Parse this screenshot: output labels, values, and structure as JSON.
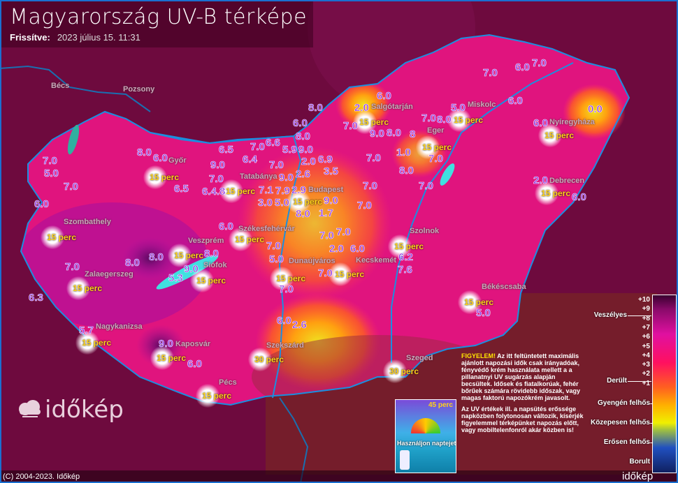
{
  "header": {
    "title": "Magyarország UV-B térképe",
    "updated_label": "Frissítve:",
    "updated_value": "2023 július 15. 11:31"
  },
  "colors": {
    "background": "#6e0a3e",
    "country_fill": "#e0147e",
    "rivers_borders": "#1a8fe0",
    "uv_text": "#8a2be2",
    "time_text": "#ffd21a"
  },
  "cities": [
    "Bécs",
    "Pozsony",
    "Salgótarján",
    "Miskolc",
    "Nyíregyháza",
    "Eger",
    "Győr",
    "Tatabánya",
    "Budapest",
    "Debrecen",
    "Szombathely",
    "Székesfehérvár",
    "Szolnok",
    "Veszprém",
    "Siófok",
    "Zalaegerszeg",
    "Dunaújváros",
    "Kecskemét",
    "Békéscsaba",
    "Nagykanizsa",
    "Kaposvár",
    "Szekszárd",
    "Szeged",
    "Pécs"
  ],
  "uv_values": [
    "7.0",
    "6.0",
    "7.0",
    "6.0",
    "2.0",
    "9.0",
    "8.0",
    "7.0",
    "8.0",
    "6.0",
    "8.0",
    "5.0",
    "8.0",
    "6.0",
    "0.0",
    "6.0",
    "8",
    "7.0",
    "7.0",
    "1.0",
    "7.0",
    "8.0",
    "6.5",
    "7.0",
    "6.4",
    "6.6",
    "5.9",
    "9.0",
    "2.0",
    "6.9",
    "3.5",
    "2.6",
    "9.0",
    "8.0",
    "6.0",
    "7.0",
    "6.4.8",
    "7.0",
    "9.0",
    "7.9",
    "2.9",
    "9.0",
    "7.1",
    "5.0",
    "8.0",
    "3.0",
    "1.7",
    "7.0",
    "7.0",
    "7.0",
    "7.0",
    "5.0",
    "7.0",
    "6.0",
    "6.5",
    "2.0",
    "6.0",
    "6.0",
    "7.0",
    "5.0",
    "7.0",
    "2.0",
    "6.0",
    "7.0",
    "7.0",
    "6.2",
    "8.0",
    "8.0",
    "9.0",
    "5.3",
    "7.0",
    "8.0",
    "6.3",
    "7.0",
    "7.6",
    "5.0",
    "6.0",
    "2.6",
    "5.7",
    "9.0",
    "6.0"
  ],
  "exposure_markers": [
    {
      "city": "Salgótarján",
      "text": "15 perc"
    },
    {
      "city": "Miskolc",
      "text": "15 perc"
    },
    {
      "city": "Nyíregyháza",
      "text": "15 perc"
    },
    {
      "city": "Eger",
      "text": "15 perc"
    },
    {
      "city": "Győr",
      "text": "15 perc"
    },
    {
      "city": "Tatabánya",
      "text": "15 perc"
    },
    {
      "city": "Budapest",
      "text": "15 perc"
    },
    {
      "city": "Debrecen",
      "text": "15 perc"
    },
    {
      "city": "Szombathely",
      "text": "15 perc"
    },
    {
      "city": "Székesfehérvár",
      "text": "15 perc"
    },
    {
      "city": "Szolnok",
      "text": "15 perc"
    },
    {
      "city": "Veszprém",
      "text": "15 perc"
    },
    {
      "city": "Siófok",
      "text": "15 perc"
    },
    {
      "city": "Zalaegerszeg",
      "text": "15 perc"
    },
    {
      "city": "Dunaújváros",
      "text": "15 perc"
    },
    {
      "city": "Kecskemét",
      "text": "15 perc"
    },
    {
      "city": "Békéscsaba",
      "text": "15 perc"
    },
    {
      "city": "Nagykanizsa",
      "text": "15 perc"
    },
    {
      "city": "Kaposvár",
      "text": "15 perc"
    },
    {
      "city": "Szekszárd",
      "text": "30 perc"
    },
    {
      "city": "Szeged",
      "text": "30 perc"
    },
    {
      "city": "Pécs",
      "text": "15 perc"
    }
  ],
  "legend": {
    "ticks": [
      "+10",
      "+9",
      "+8",
      "+7",
      "+6",
      "+5",
      "+4",
      "+3",
      "+2",
      "+1"
    ],
    "categories": [
      "Veszélyes",
      "Derült",
      "Gyengén felhős",
      "Közepesen felhős",
      "Erősen felhős",
      "Borult"
    ]
  },
  "ad": {
    "time": "45 perc",
    "slogan": "Használjon naptejet!"
  },
  "warning": {
    "lead": "FIGYELEM!",
    "p1": " Az itt feltüntetett maximális ajánlott napozási idők csak irányadóak, fényvédő krém használata mellett a a pillanatnyi UV sugárzás alapján becsültek. Idősek és fiatalkorúak, fehér bőrűek számára rövidebb időszak, vagy magas faktorú napozókrém javasolt.",
    "p2": "Az UV értékek ill. a napsütés erőssége napközben folytonosan változik, kísérjék figyelemmel térképünket napozás előtt, vagy mobiltelenfonról akár közben is!"
  },
  "brand": "időkép",
  "copyright": "(C) 2004-2023. Időkép"
}
